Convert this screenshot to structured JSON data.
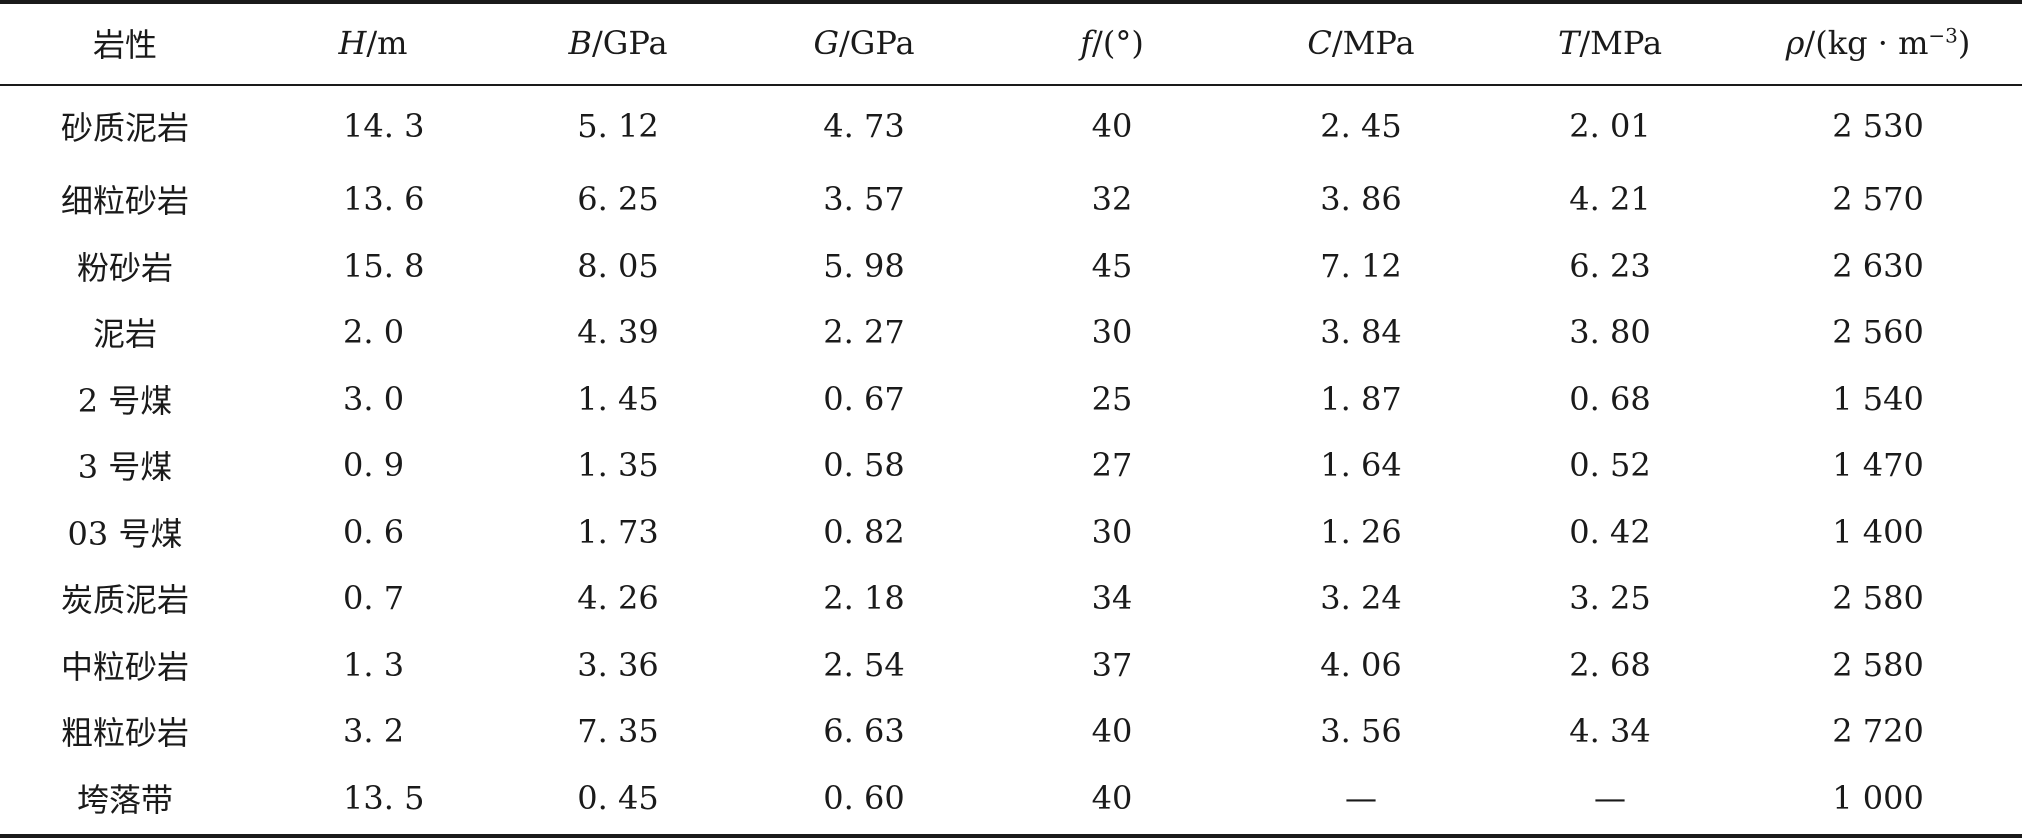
{
  "table": {
    "headers": [
      {
        "label": "岩性"
      },
      {
        "sym": "H",
        "unit": "/m"
      },
      {
        "sym": "B",
        "unit": "/GPa"
      },
      {
        "sym": "G",
        "unit": "/GPa"
      },
      {
        "sym": "f",
        "unit": "/(°)"
      },
      {
        "sym": "C",
        "unit": "/MPa"
      },
      {
        "sym": "T",
        "unit": "/MPa"
      },
      {
        "sym": "ρ",
        "unit": "/(kg · m",
        "sup": "−3",
        "tail": ")"
      }
    ],
    "rows": [
      {
        "name": "砂质泥岩",
        "H": "14. 3",
        "B": "5. 12",
        "G": "4. 73",
        "f": "40",
        "C": "2. 45",
        "T": "2. 01",
        "rho": "2 530"
      },
      {
        "name": "细粒砂岩",
        "H": "13. 6",
        "B": "6. 25",
        "G": "3. 57",
        "f": "32",
        "C": "3. 86",
        "T": "4. 21",
        "rho": "2 570"
      },
      {
        "name": "粉砂岩",
        "H": "15. 8",
        "B": "8. 05",
        "G": "5. 98",
        "f": "45",
        "C": "7. 12",
        "T": "6. 23",
        "rho": "2 630"
      },
      {
        "name": "泥岩",
        "H": "2. 0",
        "B": "4. 39",
        "G": "2. 27",
        "f": "30",
        "C": "3. 84",
        "T": "3. 80",
        "rho": "2 560"
      },
      {
        "name": "2 号煤",
        "H": "3. 0",
        "B": "1. 45",
        "G": "0. 67",
        "f": "25",
        "C": "1. 87",
        "T": "0. 68",
        "rho": "1 540"
      },
      {
        "name": "3 号煤",
        "H": "0. 9",
        "B": "1. 35",
        "G": "0. 58",
        "f": "27",
        "C": "1. 64",
        "T": "0. 52",
        "rho": "1 470"
      },
      {
        "name": "03 号煤",
        "H": "0. 6",
        "B": "1. 73",
        "G": "0. 82",
        "f": "30",
        "C": "1. 26",
        "T": "0. 42",
        "rho": "1 400"
      },
      {
        "name": "炭质泥岩",
        "H": "0. 7",
        "B": "4. 26",
        "G": "2. 18",
        "f": "34",
        "C": "3. 24",
        "T": "3. 25",
        "rho": "2 580"
      },
      {
        "name": "中粒砂岩",
        "H": "1. 3",
        "B": "3. 36",
        "G": "2. 54",
        "f": "37",
        "C": "4. 06",
        "T": "2. 68",
        "rho": "2 580"
      },
      {
        "name": "粗粒砂岩",
        "H": "3. 2",
        "B": "7. 35",
        "G": "6. 63",
        "f": "40",
        "C": "3. 56",
        "T": "4. 34",
        "rho": "2 720"
      },
      {
        "name": "垮落带",
        "H": "13. 5",
        "B": "0. 45",
        "G": "0. 60",
        "f": "40",
        "C": "—",
        "T": "—",
        "rho": "1 000"
      }
    ]
  }
}
